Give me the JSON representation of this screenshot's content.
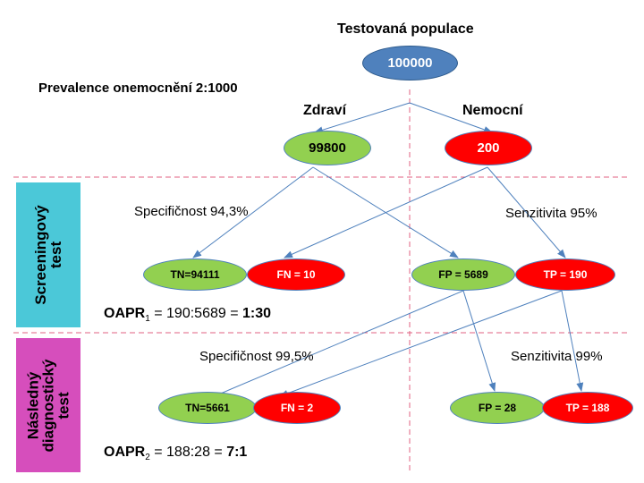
{
  "title": "Testovaná populace",
  "prevalence": "Prevalence onemocnění  2:1000",
  "population": "100000",
  "healthy_label": "Zdraví",
  "sick_label": "Nemocní",
  "healthy_count": "99800",
  "sick_count": "200",
  "screening": {
    "side_label_1": "Screeningový",
    "side_label_2": "test",
    "specificity": "Specifičnost 94,3%",
    "sensitivity": "Senzitivita 95%",
    "tn": "TN=94111",
    "fn": "FN = 10",
    "fp": "FP = 5689",
    "tp": "TP = 190",
    "oapr_prefix": "OAPR",
    "oapr_sub": "1",
    "oapr_eq": " = 190:5689 = ",
    "oapr_result": "1:30"
  },
  "diagnostic": {
    "side_label_1": "Následný",
    "side_label_2": "diagnostický",
    "side_label_3": "test",
    "specificity": "Specifičnost 99,5%",
    "sensitivity": "Senzitivita 99%",
    "tn": "TN=5661",
    "fn": "FN = 2",
    "fp": "FP = 28",
    "tp": "TP = 188",
    "oapr_prefix": "OAPR",
    "oapr_sub": "2",
    "oapr_eq": " = 188:28 = ",
    "oapr_result": "7:1"
  },
  "colors": {
    "population_fill": "#4f81bd",
    "healthy_fill": "#92d050",
    "sick_fill": "#ff0000",
    "screening_band": "#4bc8d8",
    "diagnostic_band": "#d64ebc",
    "arrow": "#4f81bd",
    "dashed": "#e06080"
  }
}
